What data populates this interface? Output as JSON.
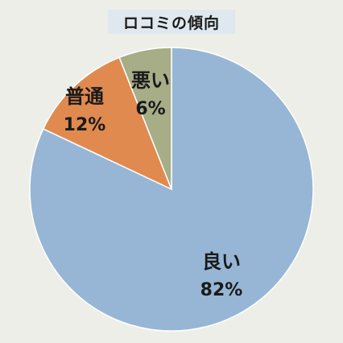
{
  "chart_data": {
    "type": "pie",
    "title": "ロコミの傾向",
    "slices": [
      {
        "label": "良い",
        "value": 82,
        "value_label": "82%",
        "color": "#97b6d6"
      },
      {
        "label": "普通",
        "value": 12,
        "value_label": "12%",
        "color": "#e08a4f"
      },
      {
        "label": "悪い",
        "value": 6,
        "value_label": "6%",
        "color": "#a6ad87"
      }
    ],
    "direction": "clockwise",
    "start_angle": "12 o'clock",
    "background": "#eeeee8",
    "title_background": "#dfe8ee"
  }
}
